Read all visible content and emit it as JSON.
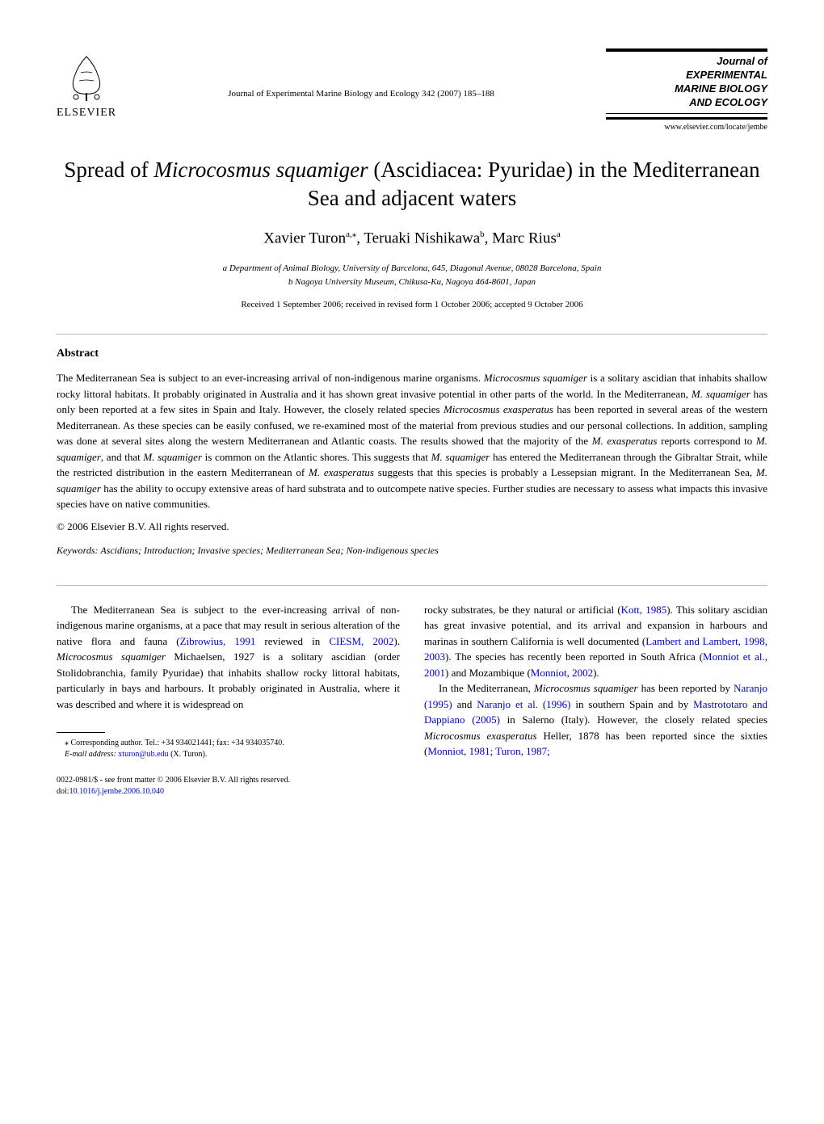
{
  "publisher": {
    "name": "ELSEVIER"
  },
  "journal": {
    "citation": "Journal of Experimental Marine Biology and Ecology 342 (2007) 185–188",
    "box_line1": "Journal of",
    "box_line2": "EXPERIMENTAL",
    "box_line3": "MARINE BIOLOGY",
    "box_line4": "AND ECOLOGY",
    "url": "www.elsevier.com/locate/jembe"
  },
  "article": {
    "title_pre": "Spread of ",
    "title_species": "Microcosmus squamiger",
    "title_post": " (Ascidiacea: Pyuridae) in the Mediterranean Sea and adjacent waters",
    "authors_html": "Xavier Turon",
    "author1_sup": "a,",
    "author1_star": "⁎",
    "author2": ", Teruaki Nishikawa",
    "author2_sup": "b",
    "author3": ", Marc Rius",
    "author3_sup": "a",
    "affiliation_a": "a Department of Animal Biology, University of Barcelona, 645, Diagonal Avenue, 08028 Barcelona, Spain",
    "affiliation_b": "b Nagoya University Museum, Chikusa-Ku, Nagoya 464-8601, Japan",
    "received": "Received 1 September 2006; received in revised form 1 October 2006; accepted 9 October 2006"
  },
  "abstract": {
    "heading": "Abstract",
    "text_parts": [
      {
        "t": "The Mediterranean Sea is subject to an ever-increasing arrival of non-indigenous marine organisms. ",
        "i": false
      },
      {
        "t": "Microcosmus squamiger",
        "i": true
      },
      {
        "t": " is a solitary ascidian that inhabits shallow rocky littoral habitats. It probably originated in Australia and it has shown great invasive potential in other parts of the world. In the Mediterranean, ",
        "i": false
      },
      {
        "t": "M. squamiger",
        "i": true
      },
      {
        "t": " has only been reported at a few sites in Spain and Italy. However, the closely related species ",
        "i": false
      },
      {
        "t": "Microcosmus exasperatus",
        "i": true
      },
      {
        "t": " has been reported in several areas of the western Mediterranean. As these species can be easily confused, we re-examined most of the material from previous studies and our personal collections. In addition, sampling was done at several sites along the western Mediterranean and Atlantic coasts. The results showed that the majority of the ",
        "i": false
      },
      {
        "t": "M. exasperatus",
        "i": true
      },
      {
        "t": " reports correspond to ",
        "i": false
      },
      {
        "t": "M. squamiger",
        "i": true
      },
      {
        "t": ", and that ",
        "i": false
      },
      {
        "t": "M. squamiger",
        "i": true
      },
      {
        "t": " is common on the Atlantic shores. This suggests that ",
        "i": false
      },
      {
        "t": "M. squamiger",
        "i": true
      },
      {
        "t": " has entered the Mediterranean through the Gibraltar Strait, while the restricted distribution in the eastern Mediterranean of ",
        "i": false
      },
      {
        "t": "M. exasperatus",
        "i": true
      },
      {
        "t": " suggests that this species is probably a Lessepsian migrant. In the Mediterranean Sea, ",
        "i": false
      },
      {
        "t": "M. squamiger",
        "i": true
      },
      {
        "t": " has the ability to occupy extensive areas of hard substrata and to outcompete native species. Further studies are necessary to assess what impacts this invasive species have on native communities.",
        "i": false
      }
    ],
    "copyright": "© 2006 Elsevier B.V. All rights reserved.",
    "keywords_label": "Keywords:",
    "keywords": " Ascidians; Introduction; Invasive species; Mediterranean Sea; Non-indigenous species"
  },
  "body": {
    "left_parts": [
      {
        "t": "The Mediterranean Sea is subject to the ever-increasing arrival of non-indigenous marine organisms, at a pace that may result in serious alteration of the native flora and fauna (",
        "i": false,
        "l": false
      },
      {
        "t": "Zibrowius, 1991",
        "i": false,
        "l": true
      },
      {
        "t": " reviewed in ",
        "i": false,
        "l": false
      },
      {
        "t": "CIESM, 2002",
        "i": false,
        "l": true
      },
      {
        "t": "). ",
        "i": false,
        "l": false
      },
      {
        "t": "Microcosmus squamiger",
        "i": true,
        "l": false
      },
      {
        "t": " Michaelsen, 1927 is a solitary ascidian (order Stolidobranchia, family Pyuridae) that inhabits shallow rocky littoral habitats, particularly in bays and harbours. It probably originated in Australia, where it was described and where it is widespread on",
        "i": false,
        "l": false
      }
    ],
    "right_p1_parts": [
      {
        "t": "rocky substrates, be they natural or artificial (",
        "i": false,
        "l": false
      },
      {
        "t": "Kott, 1985",
        "i": false,
        "l": true
      },
      {
        "t": "). This solitary ascidian has great invasive potential, and its arrival and expansion in harbours and marinas in southern California is well documented (",
        "i": false,
        "l": false
      },
      {
        "t": "Lambert and Lambert, 1998, 2003",
        "i": false,
        "l": true
      },
      {
        "t": "). The species has recently been reported in South Africa (",
        "i": false,
        "l": false
      },
      {
        "t": "Monniot et al., 2001",
        "i": false,
        "l": true
      },
      {
        "t": ") and Mozambique (",
        "i": false,
        "l": false
      },
      {
        "t": "Monniot, 2002",
        "i": false,
        "l": true
      },
      {
        "t": ").",
        "i": false,
        "l": false
      }
    ],
    "right_p2_parts": [
      {
        "t": "In the Mediterranean, ",
        "i": false,
        "l": false
      },
      {
        "t": "Microcosmus squamiger",
        "i": true,
        "l": false
      },
      {
        "t": " has been reported by ",
        "i": false,
        "l": false
      },
      {
        "t": "Naranjo (1995)",
        "i": false,
        "l": true
      },
      {
        "t": " and ",
        "i": false,
        "l": false
      },
      {
        "t": "Naranjo et al. (1996)",
        "i": false,
        "l": true
      },
      {
        "t": " in southern Spain and by ",
        "i": false,
        "l": false
      },
      {
        "t": "Mastrototaro and Dappiano (2005)",
        "i": false,
        "l": true
      },
      {
        "t": " in Salerno (Italy). However, the closely related species ",
        "i": false,
        "l": false
      },
      {
        "t": "Microcosmus exasperatus",
        "i": true,
        "l": false
      },
      {
        "t": " Heller, 1878 has been reported since the sixties (",
        "i": false,
        "l": false
      },
      {
        "t": "Monniot, 1981; Turon, 1987;",
        "i": false,
        "l": true
      }
    ]
  },
  "footnote": {
    "corresponding": "⁎ Corresponding author. Tel.: +34 934021441; fax: +34 934035740.",
    "email_label": "E-mail address:",
    "email": " xturon@ub.edu",
    "email_name": " (X. Turon)."
  },
  "footer": {
    "issn": "0022-0981/$ - see front matter © 2006 Elsevier B.V. All rights reserved.",
    "doi_label": "doi:",
    "doi": "10.1016/j.jembe.2006.10.040"
  }
}
